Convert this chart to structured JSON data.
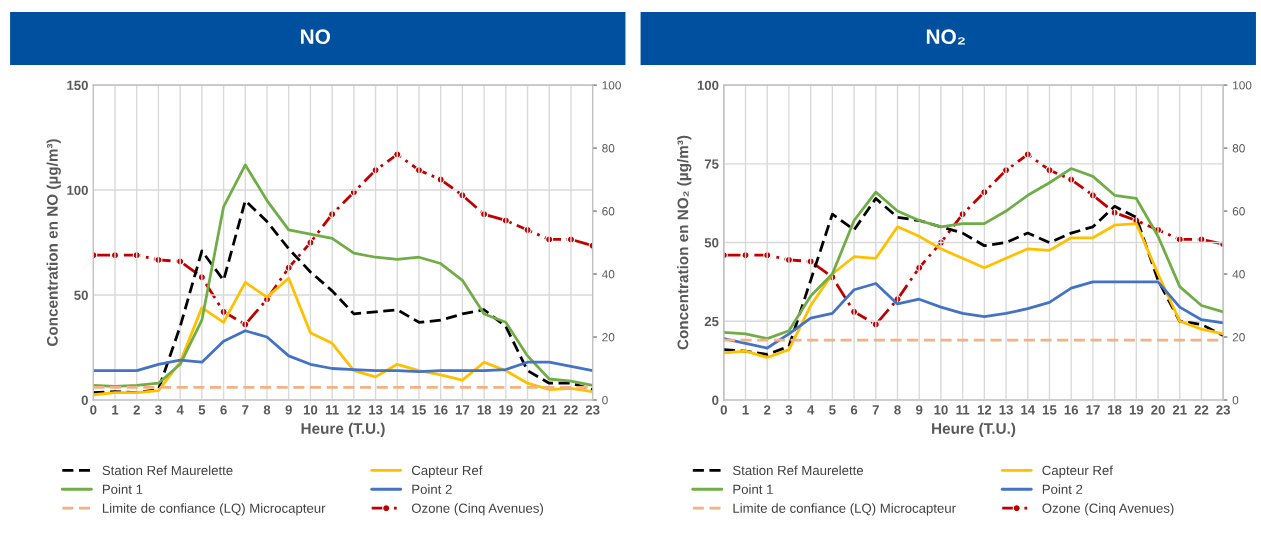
{
  "chart_data": [
    {
      "type": "line",
      "title": "NO",
      "xlabel": "Heure (T.U.)",
      "ylabel": "Concentration en NO (µg/m³)",
      "categories": [
        "0",
        "1",
        "2",
        "3",
        "4",
        "5",
        "6",
        "7",
        "8",
        "9",
        "10",
        "11",
        "12",
        "13",
        "14",
        "15",
        "16",
        "17",
        "18",
        "19",
        "20",
        "21",
        "22",
        "23"
      ],
      "ylim": [
        0,
        150
      ],
      "yticks": [
        0,
        50,
        100,
        150
      ],
      "y2lim": [
        0,
        100
      ],
      "y2ticks": [
        0,
        20,
        40,
        60,
        80,
        100
      ],
      "grid": true,
      "legend": "bottom",
      "series": [
        {
          "name": "Station Ref Maurelette",
          "color": "#000000",
          "line_style": "dashed",
          "values": [
            3.5,
            4,
            3.5,
            5,
            35,
            71,
            57,
            95,
            85,
            72,
            61,
            52,
            41,
            42,
            43,
            37,
            38,
            41,
            43,
            35,
            14,
            8,
            8,
            5
          ]
        },
        {
          "name": "Capteur Ref",
          "color": "#ffc000",
          "line_style": "solid",
          "values": [
            2.5,
            3.5,
            3.5,
            4.5,
            18,
            44,
            37,
            56,
            49,
            58,
            32,
            27,
            14,
            11,
            17,
            14,
            12,
            9.5,
            18,
            14,
            8,
            5,
            5.5,
            4
          ]
        },
        {
          "name": "Point 1",
          "color": "#70ad47",
          "line_style": "solid",
          "values": [
            7,
            6.5,
            7,
            8,
            17,
            38,
            92,
            112,
            95,
            81,
            79,
            77,
            70,
            68,
            67,
            68,
            65,
            57,
            41,
            37,
            21,
            10,
            9,
            7
          ]
        },
        {
          "name": "Point 2",
          "color": "#4472c4",
          "line_style": "solid",
          "values": [
            14,
            14,
            14,
            17,
            19,
            18,
            28,
            33,
            30,
            21,
            17,
            15,
            14.5,
            14,
            14,
            13.5,
            14,
            14,
            14,
            14.5,
            18,
            18,
            16,
            14
          ]
        },
        {
          "name": "Limite de confiance (LQ) Microcapteur",
          "color": "#f4b183",
          "line_style": "dashed",
          "values": [
            6,
            6,
            6,
            6,
            6,
            6,
            6,
            6,
            6,
            6,
            6,
            6,
            6,
            6,
            6,
            6,
            6,
            6,
            6,
            6,
            6,
            6,
            6,
            6
          ]
        },
        {
          "name": "Ozone (Cinq Avenues)",
          "color": "#c00000",
          "line_style": "dashdot",
          "marker": "circle",
          "axis": "y2",
          "values": [
            46,
            46,
            46,
            44.5,
            44,
            39,
            28,
            24,
            32,
            42,
            50,
            59,
            66,
            73,
            78,
            73,
            70,
            65,
            59,
            57,
            54,
            51,
            51,
            49
          ]
        }
      ]
    },
    {
      "type": "line",
      "title": "NO₂",
      "xlabel": "Heure (T.U.)",
      "ylabel": "Concentration en NO₂ (µg/m³)",
      "categories": [
        "0",
        "1",
        "2",
        "3",
        "4",
        "5",
        "6",
        "7",
        "8",
        "9",
        "10",
        "11",
        "12",
        "13",
        "14",
        "15",
        "16",
        "17",
        "18",
        "19",
        "20",
        "21",
        "22",
        "23"
      ],
      "ylim": [
        0,
        100
      ],
      "yticks": [
        0,
        25,
        50,
        75,
        100
      ],
      "y2lim": [
        0,
        100
      ],
      "y2ticks": [
        0,
        20,
        40,
        60,
        80,
        100
      ],
      "grid": true,
      "legend": "bottom",
      "series": [
        {
          "name": "Station Ref Maurelette",
          "color": "#000000",
          "line_style": "dashed",
          "values": [
            16,
            15.5,
            14.5,
            17,
            38,
            59,
            54,
            64,
            58,
            57,
            55,
            53,
            49,
            50,
            53,
            50,
            53,
            55,
            61.5,
            58,
            38,
            25,
            24,
            20.5
          ]
        },
        {
          "name": "Capteur Ref",
          "color": "#ffc000",
          "line_style": "solid",
          "values": [
            15,
            15.5,
            13.5,
            16,
            30,
            40,
            45.5,
            45,
            55,
            52,
            48,
            45,
            42,
            45,
            48,
            47.5,
            51.5,
            51.5,
            55.5,
            56,
            40,
            25,
            22.5,
            21
          ]
        },
        {
          "name": "Point 1",
          "color": "#70ad47",
          "line_style": "solid",
          "values": [
            21.5,
            21,
            19.5,
            22,
            33,
            40,
            57,
            66,
            60,
            57,
            55,
            56,
            56,
            60,
            65,
            69,
            73.5,
            71,
            65,
            64,
            52,
            36,
            30,
            28
          ]
        },
        {
          "name": "Point 2",
          "color": "#4472c4",
          "line_style": "solid",
          "values": [
            19.5,
            18,
            16.5,
            21,
            26,
            27.5,
            35,
            37,
            30.5,
            32,
            29.5,
            27.5,
            26.5,
            27.5,
            29,
            31,
            35.5,
            37.5,
            37.5,
            37.5,
            37.5,
            29.5,
            25.5,
            24.5
          ]
        },
        {
          "name": "Limite de confiance (LQ) Microcapteur",
          "color": "#f4b183",
          "line_style": "dashed",
          "values": [
            19,
            19,
            19,
            19,
            19,
            19,
            19,
            19,
            19,
            19,
            19,
            19,
            19,
            19,
            19,
            19,
            19,
            19,
            19,
            19,
            19,
            19,
            19,
            19
          ]
        },
        {
          "name": "Ozone (Cinq Avenues)",
          "color": "#c00000",
          "line_style": "dashdot",
          "marker": "circle",
          "axis": "y2",
          "values": [
            46,
            46,
            46,
            44.5,
            44,
            39,
            28,
            24,
            32,
            42,
            50,
            59,
            66,
            73,
            78,
            73,
            70,
            65,
            59.5,
            57,
            54,
            51,
            51,
            49.5
          ]
        }
      ]
    }
  ]
}
